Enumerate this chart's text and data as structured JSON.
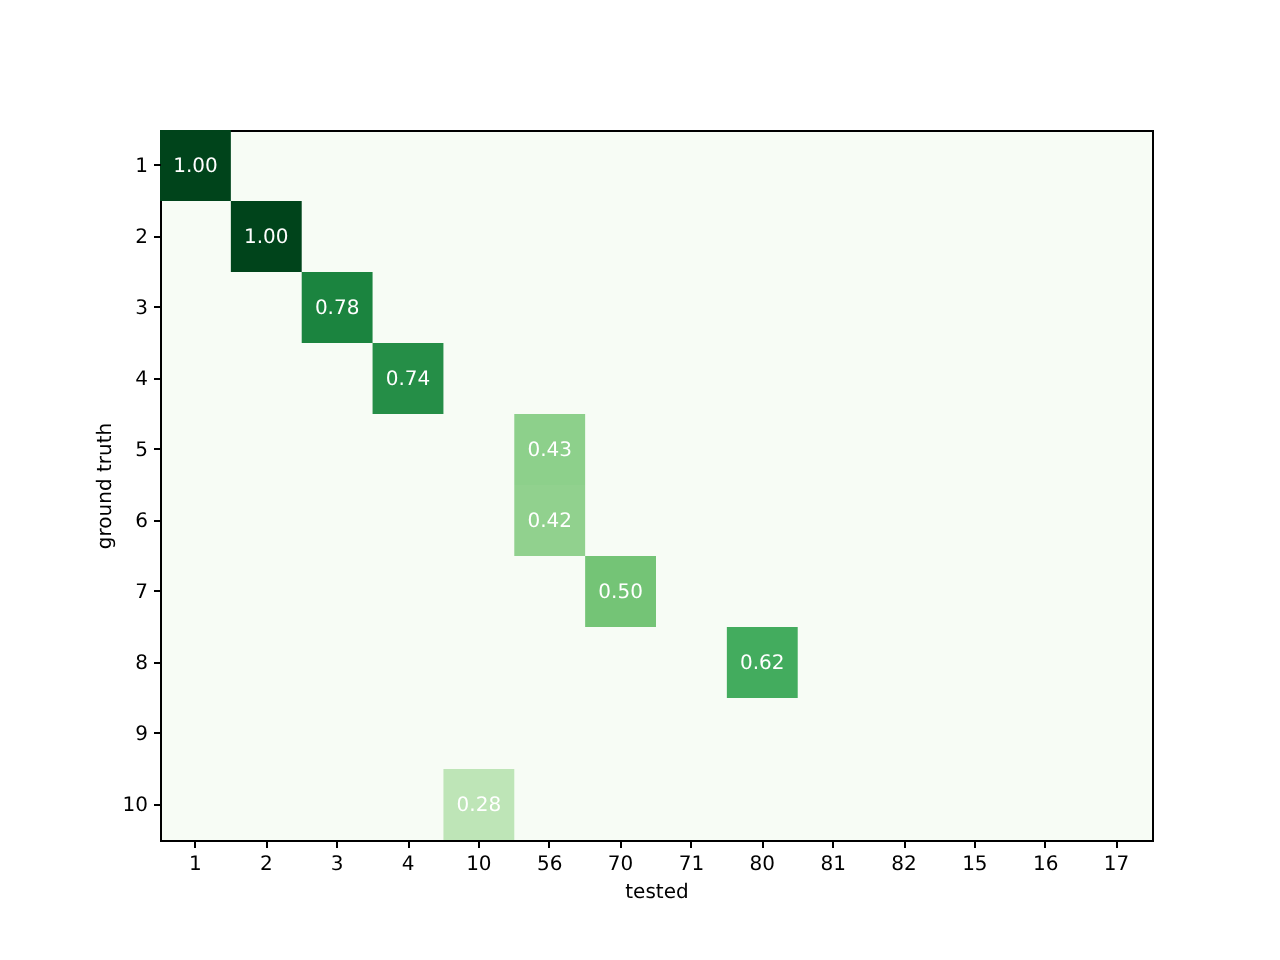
{
  "chart_data": {
    "type": "heatmap",
    "xlabel": "tested",
    "ylabel": "ground truth",
    "categories": [
      "1",
      "2",
      "3",
      "4",
      "10",
      "56",
      "70",
      "71",
      "80",
      "81",
      "82",
      "15",
      "16",
      "17"
    ],
    "y_categories": [
      "1",
      "2",
      "3",
      "4",
      "5",
      "6",
      "7",
      "8",
      "9",
      "10"
    ],
    "cells": [
      [
        1.0,
        null,
        null,
        null,
        null,
        null,
        null,
        null,
        null,
        null,
        null,
        null,
        null,
        null
      ],
      [
        null,
        1.0,
        null,
        null,
        null,
        null,
        null,
        null,
        null,
        null,
        null,
        null,
        null,
        null
      ],
      [
        null,
        null,
        0.78,
        null,
        null,
        null,
        null,
        null,
        null,
        null,
        null,
        null,
        null,
        null
      ],
      [
        null,
        null,
        null,
        0.74,
        null,
        null,
        null,
        null,
        null,
        null,
        null,
        null,
        null,
        null
      ],
      [
        null,
        null,
        null,
        null,
        null,
        0.43,
        null,
        null,
        null,
        null,
        null,
        null,
        null,
        null
      ],
      [
        null,
        null,
        null,
        null,
        null,
        0.42,
        null,
        null,
        null,
        null,
        null,
        null,
        null,
        null
      ],
      [
        null,
        null,
        null,
        null,
        null,
        null,
        0.5,
        null,
        null,
        null,
        null,
        null,
        null,
        null
      ],
      [
        null,
        null,
        null,
        null,
        null,
        null,
        null,
        null,
        0.62,
        null,
        null,
        null,
        null,
        null
      ],
      [
        null,
        null,
        null,
        null,
        null,
        null,
        null,
        null,
        null,
        null,
        null,
        null,
        null,
        null
      ],
      [
        null,
        null,
        null,
        null,
        0.28,
        null,
        null,
        null,
        null,
        null,
        null,
        null,
        null,
        null
      ]
    ],
    "cell_labels": [
      [
        "1.00",
        null,
        null,
        null,
        null,
        null,
        null,
        null,
        null,
        null,
        null,
        null,
        null,
        null
      ],
      [
        null,
        "1.00",
        null,
        null,
        null,
        null,
        null,
        null,
        null,
        null,
        null,
        null,
        null,
        null
      ],
      [
        null,
        null,
        "0.78",
        null,
        null,
        null,
        null,
        null,
        null,
        null,
        null,
        null,
        null,
        null
      ],
      [
        null,
        null,
        null,
        "0.74",
        null,
        null,
        null,
        null,
        null,
        null,
        null,
        null,
        null,
        null
      ],
      [
        null,
        null,
        null,
        null,
        null,
        "0.43",
        null,
        null,
        null,
        null,
        null,
        null,
        null,
        null
      ],
      [
        null,
        null,
        null,
        null,
        null,
        "0.42",
        null,
        null,
        null,
        null,
        null,
        null,
        null,
        null
      ],
      [
        null,
        null,
        null,
        null,
        null,
        null,
        "0.50",
        null,
        null,
        null,
        null,
        null,
        null,
        null
      ],
      [
        null,
        null,
        null,
        null,
        null,
        null,
        null,
        null,
        "0.62",
        null,
        null,
        null,
        null,
        null
      ],
      [
        null,
        null,
        null,
        null,
        null,
        null,
        null,
        null,
        null,
        null,
        null,
        null,
        null,
        null
      ],
      [
        null,
        null,
        null,
        null,
        "0.28",
        null,
        null,
        null,
        null,
        null,
        null,
        null,
        null,
        null
      ]
    ]
  }
}
